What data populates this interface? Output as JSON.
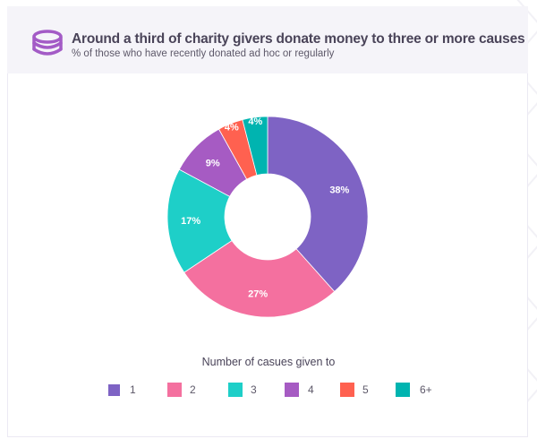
{
  "header": {
    "icon": "coins-stack-icon",
    "title": "Around a third of charity givers donate money to three or more causes",
    "subtitle": "% of those who have recently donated ad hoc or regularly"
  },
  "colors": {
    "header_bg": "#f5f4f9",
    "icon": "#a35bc6",
    "seg_1": "#7e63c4",
    "seg_2": "#f4709f",
    "seg_3": "#1ecfc8",
    "seg_4": "#a65bc3",
    "seg_5": "#ff6150",
    "seg_6": "#00b4b0"
  },
  "chart_data": {
    "type": "pie",
    "subtype": "donut",
    "title": "Around a third of charity givers donate money to three or more causes",
    "subtitle": "% of those who have recently donated ad hoc or regularly",
    "legend_title": "Number of casues given to",
    "legend_position": "bottom",
    "categories": [
      "1",
      "2",
      "3",
      "4",
      "5",
      "6+"
    ],
    "values": [
      38,
      27,
      17,
      9,
      4,
      4
    ],
    "labels": [
      "38%",
      "27%",
      "17%",
      "9%",
      "4%",
      "4%"
    ],
    "unit": "%"
  },
  "legend": {
    "title": "Number of casues given to",
    "items": [
      {
        "label": "1"
      },
      {
        "label": "2"
      },
      {
        "label": "3"
      },
      {
        "label": "4"
      },
      {
        "label": "5"
      },
      {
        "label": "6+"
      }
    ]
  }
}
